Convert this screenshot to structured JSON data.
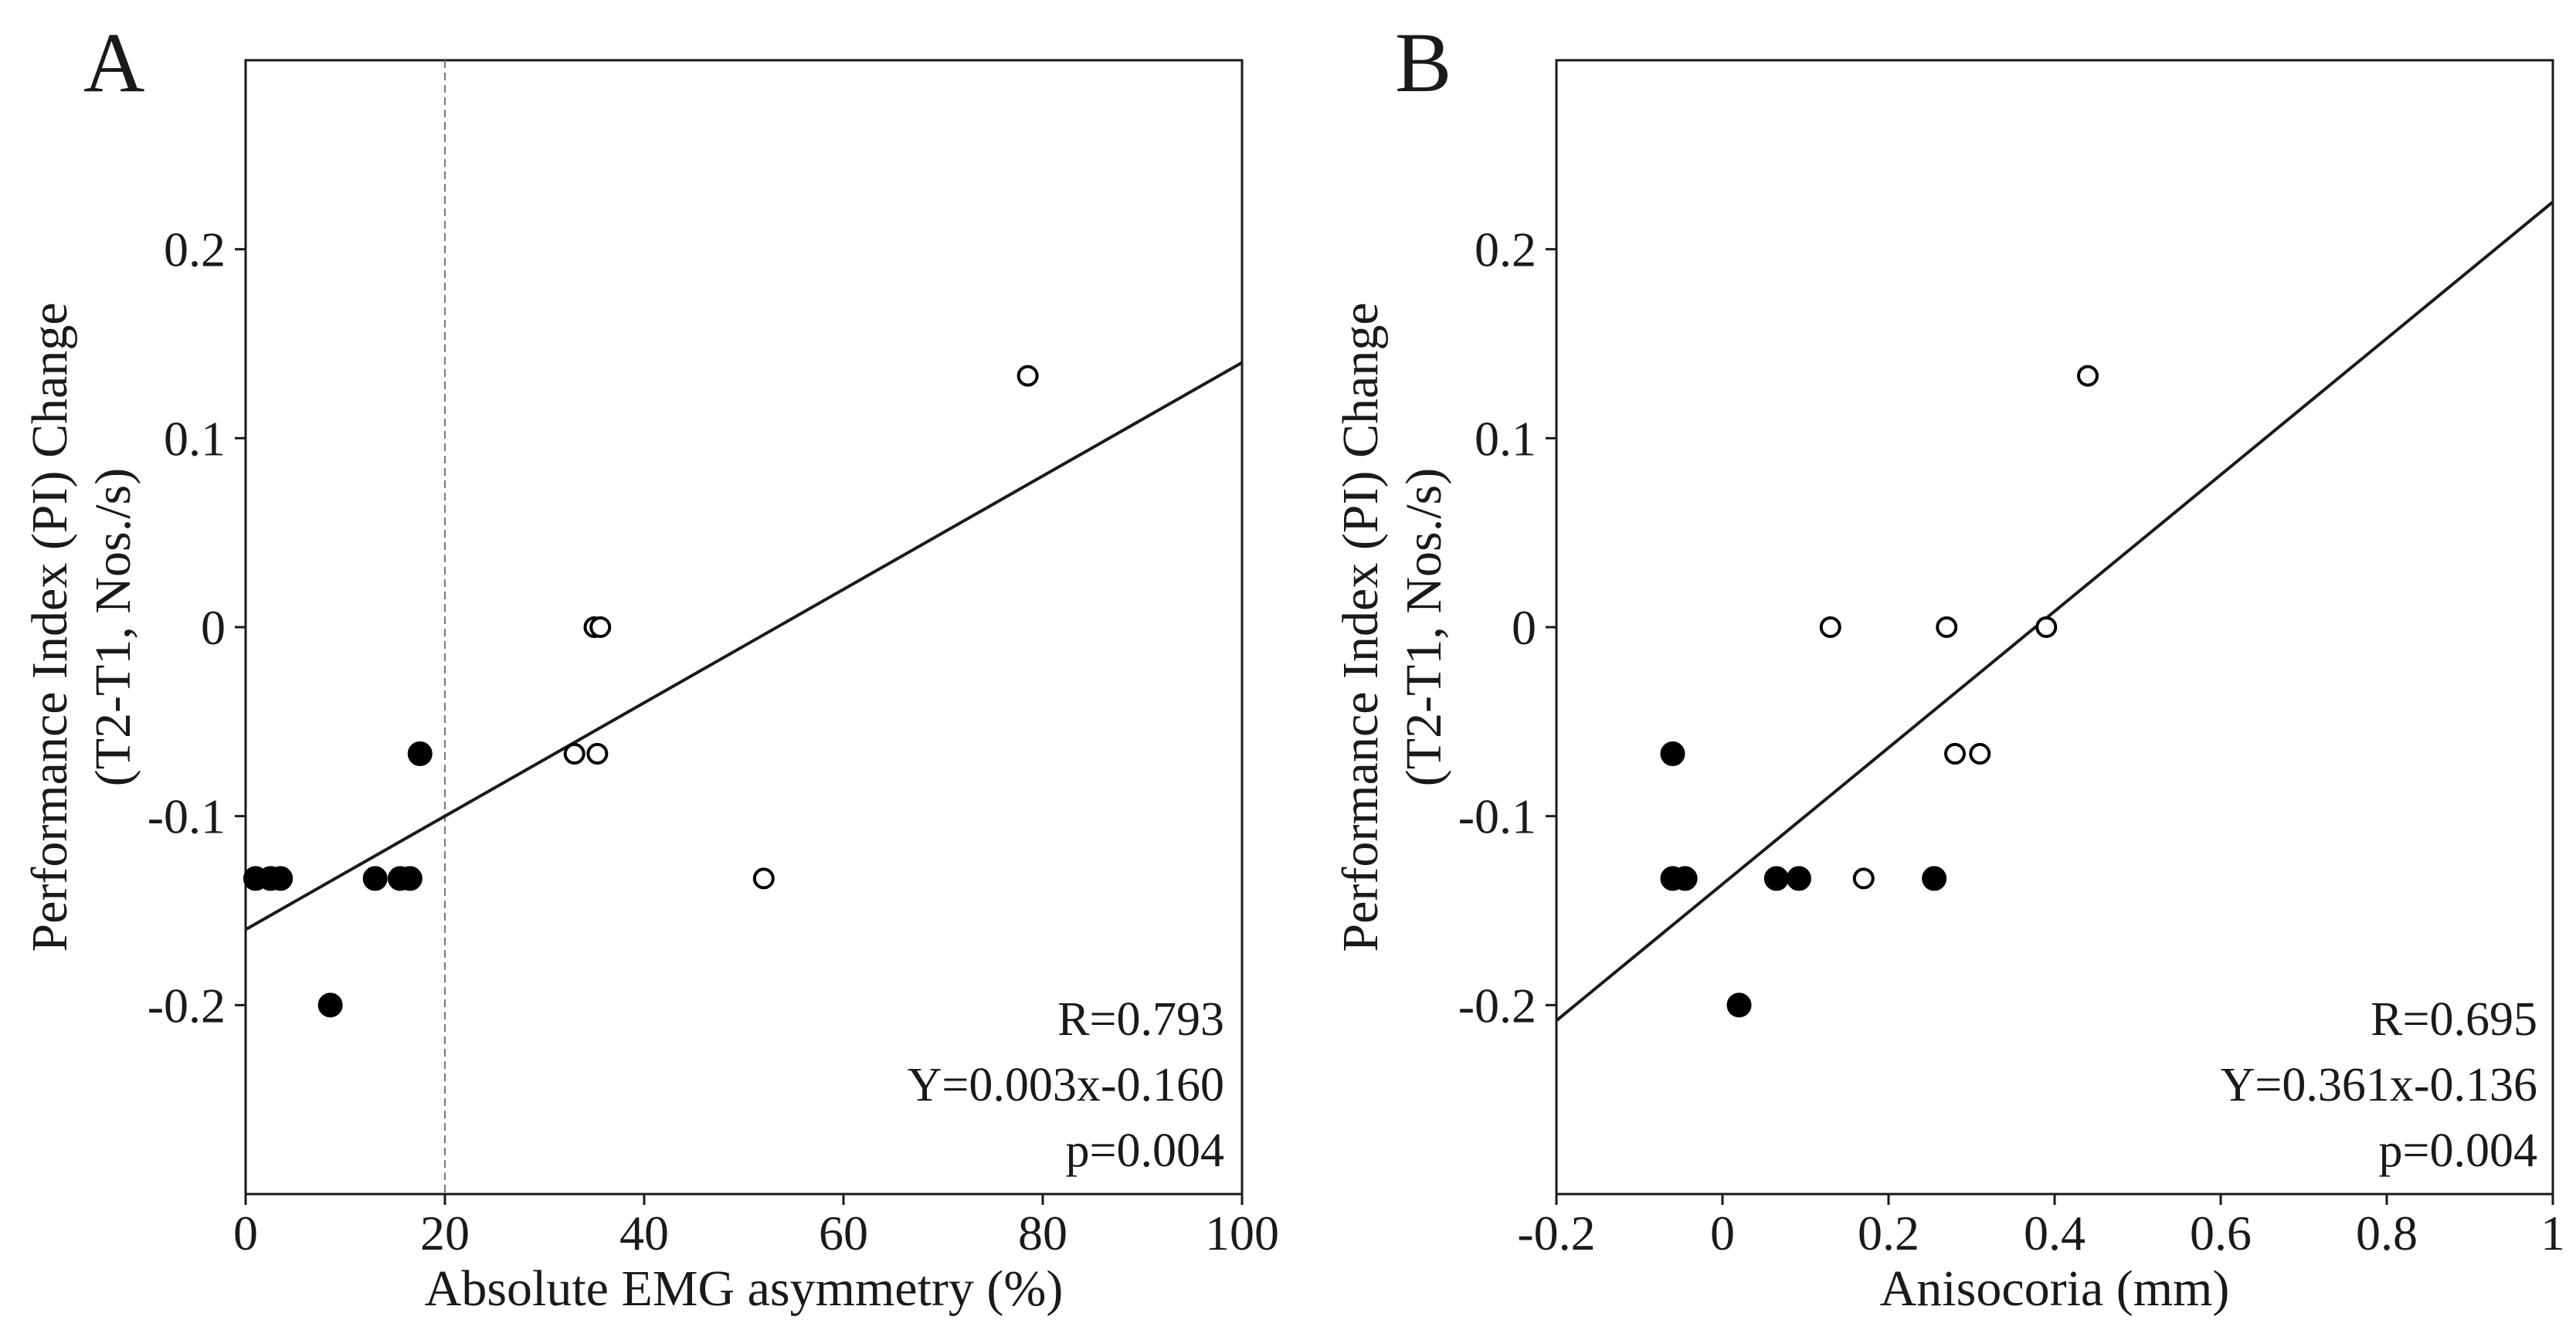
{
  "chart_data": [
    {
      "type": "scatter",
      "panel_label": "A",
      "xlabel": "Absolute EMG asymmetry (%)",
      "ylabel_line1": "Performance Index (PI) Change",
      "ylabel_line2": "(T2-T1, Nos./s)",
      "xlim": [
        0,
        100
      ],
      "ylim": [
        -0.3,
        0.3
      ],
      "xticks": [
        0,
        20,
        40,
        60,
        80,
        100
      ],
      "xtick_labels": [
        "0",
        "20",
        "40",
        "60",
        "80",
        "100"
      ],
      "yticks": [
        -0.2,
        -0.1,
        0,
        0.1,
        0.2
      ],
      "ytick_labels": [
        "-0.2",
        "-0.1",
        "0",
        "0.1",
        "0.2"
      ],
      "threshold_x": 20,
      "series": [
        {
          "name": "filled",
          "marker": "filled-circle",
          "points": [
            [
              1,
              -0.133
            ],
            [
              2.5,
              -0.133
            ],
            [
              3.5,
              -0.133
            ],
            [
              8.5,
              -0.2
            ],
            [
              13,
              -0.133
            ],
            [
              15.5,
              -0.133
            ],
            [
              16.5,
              -0.133
            ],
            [
              17.5,
              -0.067
            ]
          ]
        },
        {
          "name": "open",
          "marker": "open-circle",
          "points": [
            [
              78.5,
              0.133
            ],
            [
              35,
              0
            ],
            [
              35.6,
              0
            ],
            [
              33,
              -0.067
            ],
            [
              35.3,
              -0.067
            ],
            [
              52,
              -0.133
            ]
          ]
        }
      ],
      "fit_line": {
        "slope": 0.003,
        "intercept": -0.16,
        "x_range": [
          0,
          100
        ]
      },
      "annotations": [
        "R=0.793",
        "Y=0.003x-0.160",
        "p=0.004"
      ]
    },
    {
      "type": "scatter",
      "panel_label": "B",
      "xlabel": "Anisocoria (mm)",
      "ylabel_line1": "Performance Index (PI) Change",
      "ylabel_line2": "(T2-T1, Nos./s)",
      "xlim": [
        -0.2,
        1.0
      ],
      "ylim": [
        -0.3,
        0.3
      ],
      "xticks": [
        -0.2,
        0,
        0.2,
        0.4,
        0.6,
        0.8,
        1.0
      ],
      "xtick_labels": [
        "-0.2",
        "0",
        "0.2",
        "0.4",
        "0.6",
        "0.8",
        "1"
      ],
      "yticks": [
        -0.2,
        -0.1,
        0,
        0.1,
        0.2
      ],
      "ytick_labels": [
        "-0.2",
        "-0.1",
        "0",
        "0.1",
        "0.2"
      ],
      "series": [
        {
          "name": "filled",
          "marker": "filled-circle",
          "points": [
            [
              -0.06,
              -0.067
            ],
            [
              -0.06,
              -0.133
            ],
            [
              -0.045,
              -0.133
            ],
            [
              0.02,
              -0.2
            ],
            [
              0.065,
              -0.133
            ],
            [
              0.092,
              -0.133
            ],
            [
              0.255,
              -0.133
            ]
          ]
        },
        {
          "name": "open",
          "marker": "open-circle",
          "points": [
            [
              0.44,
              0.133
            ],
            [
              0.13,
              0
            ],
            [
              0.27,
              0
            ],
            [
              0.39,
              0
            ],
            [
              0.28,
              -0.067
            ],
            [
              0.31,
              -0.067
            ],
            [
              0.17,
              -0.133
            ]
          ]
        }
      ],
      "fit_line": {
        "slope": 0.361,
        "intercept": -0.136,
        "x_range": [
          -0.2,
          1.0
        ]
      },
      "annotations": [
        "R=0.695",
        "Y=0.361x-0.136",
        "p=0.004"
      ]
    }
  ]
}
